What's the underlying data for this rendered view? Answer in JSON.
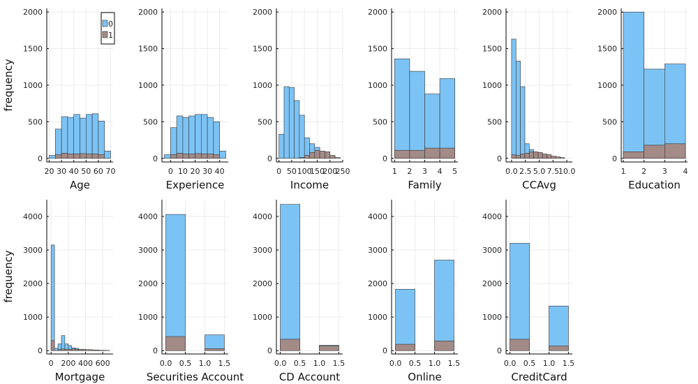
{
  "ylabel": "frequency",
  "colors": {
    "class0": "#7cc3f5",
    "class1": "#a38b88"
  },
  "legend": {
    "labels": [
      "0",
      "1"
    ],
    "placement": "top-right",
    "panel": 0
  },
  "chart_data": [
    {
      "type": "bar",
      "xlabel": "Age",
      "xlim": [
        18,
        72
      ],
      "ylim": [
        -50,
        2050
      ],
      "xticks": [
        20,
        30,
        40,
        50,
        60,
        70
      ],
      "yticks": [
        0,
        500,
        1000,
        1500,
        2000
      ],
      "bins": [
        [
          20,
          25
        ],
        [
          25,
          30
        ],
        [
          30,
          35
        ],
        [
          35,
          40
        ],
        [
          40,
          45
        ],
        [
          45,
          50
        ],
        [
          50,
          55
        ],
        [
          55,
          60
        ],
        [
          60,
          65
        ],
        [
          65,
          70
        ]
      ],
      "series": [
        {
          "name": "0",
          "values": [
            40,
            400,
            570,
            560,
            600,
            550,
            600,
            610,
            510,
            100
          ]
        },
        {
          "name": "1",
          "values": [
            0,
            50,
            70,
            60,
            60,
            65,
            60,
            60,
            50,
            0
          ]
        }
      ]
    },
    {
      "type": "bar",
      "xlabel": "Experience",
      "xlim": [
        -7,
        47
      ],
      "ylim": [
        -50,
        2050
      ],
      "xticks": [
        0,
        10,
        20,
        30,
        40
      ],
      "yticks": [
        0,
        500,
        1000,
        1500,
        2000
      ],
      "bins": [
        [
          -5,
          0
        ],
        [
          0,
          5
        ],
        [
          5,
          10
        ],
        [
          10,
          15
        ],
        [
          15,
          20
        ],
        [
          20,
          25
        ],
        [
          25,
          30
        ],
        [
          30,
          35
        ],
        [
          35,
          40
        ],
        [
          40,
          45
        ]
      ],
      "series": [
        {
          "name": "0",
          "values": [
            50,
            420,
            580,
            560,
            580,
            600,
            600,
            560,
            500,
            100
          ]
        },
        {
          "name": "1",
          "values": [
            0,
            50,
            70,
            60,
            60,
            65,
            60,
            60,
            50,
            0
          ]
        }
      ]
    },
    {
      "type": "bar",
      "xlabel": "Income",
      "xlim": [
        -10,
        250
      ],
      "ylim": [
        -50,
        2050
      ],
      "xticks": [
        0,
        50,
        100,
        150,
        200,
        250
      ],
      "yticks": [
        0,
        500,
        1000,
        1500,
        2000
      ],
      "tick_labels": [
        "0",
        "50",
        "100",
        "150",
        "200",
        "250"
      ],
      "bins": [
        [
          0,
          20
        ],
        [
          20,
          40
        ],
        [
          40,
          60
        ],
        [
          60,
          80
        ],
        [
          80,
          100
        ],
        [
          100,
          120
        ],
        [
          120,
          140
        ],
        [
          140,
          160
        ],
        [
          160,
          180
        ],
        [
          180,
          200
        ],
        [
          200,
          220
        ],
        [
          220,
          240
        ]
      ],
      "series": [
        {
          "name": "0",
          "values": [
            330,
            980,
            970,
            790,
            590,
            280,
            200,
            150,
            90,
            60,
            30,
            0
          ]
        },
        {
          "name": "1",
          "values": [
            0,
            0,
            0,
            0,
            10,
            40,
            80,
            110,
            100,
            90,
            40,
            10
          ]
        }
      ]
    },
    {
      "type": "bar",
      "xlabel": "Family",
      "xlim": [
        0.8,
        5.2
      ],
      "ylim": [
        -50,
        2050
      ],
      "xticks": [
        1,
        2,
        3,
        4,
        5
      ],
      "yticks": [
        0,
        500,
        1000,
        1500,
        2000
      ],
      "bins": [
        [
          1,
          2
        ],
        [
          2,
          3
        ],
        [
          3,
          4
        ],
        [
          4,
          5
        ]
      ],
      "series": [
        {
          "name": "0",
          "values": [
            1360,
            1190,
            880,
            1090
          ]
        },
        {
          "name": "1",
          "values": [
            110,
            110,
            140,
            140
          ]
        }
      ]
    },
    {
      "type": "bar",
      "xlabel": "CCAvg",
      "xlim": [
        -1,
        11
      ],
      "ylim": [
        -50,
        2050
      ],
      "xticks": [
        0,
        2.5,
        5,
        7.5,
        10
      ],
      "yticks": [
        0,
        500,
        1000,
        1500,
        2000
      ],
      "tick_labels": [
        "0.0",
        "2.5",
        "5.0",
        "7.5",
        "10.0"
      ],
      "bins": [
        [
          0,
          0.8
        ],
        [
          0.8,
          1.6
        ],
        [
          1.6,
          2.4
        ],
        [
          2.4,
          3.2
        ],
        [
          3.2,
          4
        ],
        [
          4,
          4.8
        ],
        [
          4.8,
          5.6
        ],
        [
          5.6,
          6.4
        ],
        [
          6.4,
          7.2
        ],
        [
          7.2,
          8
        ],
        [
          8,
          8.8
        ],
        [
          8.8,
          9.6
        ],
        [
          9.6,
          10.4
        ]
      ],
      "series": [
        {
          "name": "0",
          "values": [
            1630,
            1330,
            980,
            200,
            120,
            40,
            30,
            20,
            10,
            0,
            0,
            0,
            0
          ]
        },
        {
          "name": "1",
          "values": [
            50,
            40,
            60,
            70,
            90,
            90,
            80,
            60,
            50,
            30,
            20,
            10,
            0
          ]
        }
      ]
    },
    {
      "type": "bar",
      "xlabel": "Education",
      "xlim": [
        0.9,
        4.1
      ],
      "ylim": [
        -50,
        2050
      ],
      "xticks": [
        1,
        2,
        3,
        4
      ],
      "yticks": [
        0,
        500,
        1000,
        1500,
        2000
      ],
      "bins": [
        [
          1,
          2
        ],
        [
          2,
          3
        ],
        [
          3,
          4
        ]
      ],
      "series": [
        {
          "name": "0",
          "values": [
            2000,
            1220,
            1290
          ]
        },
        {
          "name": "1",
          "values": [
            90,
            180,
            200
          ]
        }
      ]
    },
    {
      "type": "bar",
      "xlabel": "Mortgage",
      "xlim": [
        -50,
        720
      ],
      "ylim": [
        -100,
        4500
      ],
      "xticks": [
        0,
        200,
        400,
        600
      ],
      "yticks": [
        0,
        1000,
        2000,
        3000,
        4000
      ],
      "bins": [
        [
          0,
          40
        ],
        [
          40,
          80
        ],
        [
          80,
          120
        ],
        [
          120,
          160
        ],
        [
          160,
          200
        ],
        [
          200,
          240
        ],
        [
          240,
          280
        ],
        [
          280,
          320
        ],
        [
          320,
          360
        ],
        [
          360,
          400
        ],
        [
          400,
          440
        ],
        [
          440,
          480
        ],
        [
          480,
          520
        ],
        [
          520,
          560
        ],
        [
          560,
          600
        ],
        [
          600,
          640
        ],
        [
          640,
          680
        ],
        [
          680,
          720
        ]
      ],
      "series": [
        {
          "name": "0",
          "values": [
            3150,
            70,
            200,
            450,
            200,
            150,
            80,
            70,
            40,
            30,
            20,
            10,
            5,
            5,
            0,
            0,
            0,
            0
          ]
        },
        {
          "name": "1",
          "values": [
            300,
            0,
            30,
            50,
            40,
            40,
            50,
            40,
            40,
            40,
            30,
            30,
            20,
            20,
            10,
            10,
            5,
            0
          ]
        }
      ]
    },
    {
      "type": "bar",
      "xlabel": "Securities Account",
      "xlim": [
        -0.1,
        1.6
      ],
      "ylim": [
        -100,
        4500
      ],
      "xticks": [
        0,
        0.5,
        1,
        1.5
      ],
      "yticks": [
        0,
        1000,
        2000,
        3000,
        4000
      ],
      "tick_labels": [
        "0.0",
        "0.5",
        "1.0",
        "1.5"
      ],
      "bins": [
        [
          0,
          0.5
        ],
        [
          0.5,
          1
        ],
        [
          1,
          1.5
        ]
      ],
      "series": [
        {
          "name": "0",
          "values": [
            4060,
            0,
            470
          ]
        },
        {
          "name": "1",
          "values": [
            420,
            0,
            60
          ]
        }
      ]
    },
    {
      "type": "bar",
      "xlabel": "CD Account",
      "xlim": [
        -0.1,
        1.6
      ],
      "ylim": [
        -100,
        4500
      ],
      "xticks": [
        0,
        0.5,
        1,
        1.5
      ],
      "yticks": [
        0,
        1000,
        2000,
        3000,
        4000
      ],
      "tick_labels": [
        "0.0",
        "0.5",
        "1.0",
        "1.5"
      ],
      "bins": [
        [
          0,
          0.5
        ],
        [
          0.5,
          1
        ],
        [
          1,
          1.5
        ]
      ],
      "series": [
        {
          "name": "0",
          "values": [
            4360,
            0,
            160
          ]
        },
        {
          "name": "1",
          "values": [
            340,
            0,
            140
          ]
        }
      ]
    },
    {
      "type": "bar",
      "xlabel": "Online",
      "xlim": [
        -0.1,
        1.6
      ],
      "ylim": [
        -100,
        4500
      ],
      "xticks": [
        0,
        0.5,
        1,
        1.5
      ],
      "yticks": [
        0,
        1000,
        2000,
        3000,
        4000
      ],
      "tick_labels": [
        "0.0",
        "0.5",
        "1.0",
        "1.5"
      ],
      "bins": [
        [
          0,
          0.5
        ],
        [
          0.5,
          1
        ],
        [
          1,
          1.5
        ]
      ],
      "series": [
        {
          "name": "0",
          "values": [
            1830,
            0,
            2700
          ]
        },
        {
          "name": "1",
          "values": [
            190,
            0,
            290
          ]
        }
      ]
    },
    {
      "type": "bar",
      "xlabel": "CreditCard",
      "xlim": [
        -0.1,
        1.6
      ],
      "ylim": [
        -100,
        4500
      ],
      "xticks": [
        0,
        0.5,
        1,
        1.5
      ],
      "yticks": [
        0,
        1000,
        2000,
        3000,
        4000
      ],
      "tick_labels": [
        "0.0",
        "0.5",
        "1.0",
        "1.5"
      ],
      "bins": [
        [
          0,
          0.5
        ],
        [
          0.5,
          1
        ],
        [
          1,
          1.5
        ]
      ],
      "series": [
        {
          "name": "0",
          "values": [
            3200,
            0,
            1330
          ]
        },
        {
          "name": "1",
          "values": [
            340,
            0,
            140
          ]
        }
      ]
    }
  ]
}
